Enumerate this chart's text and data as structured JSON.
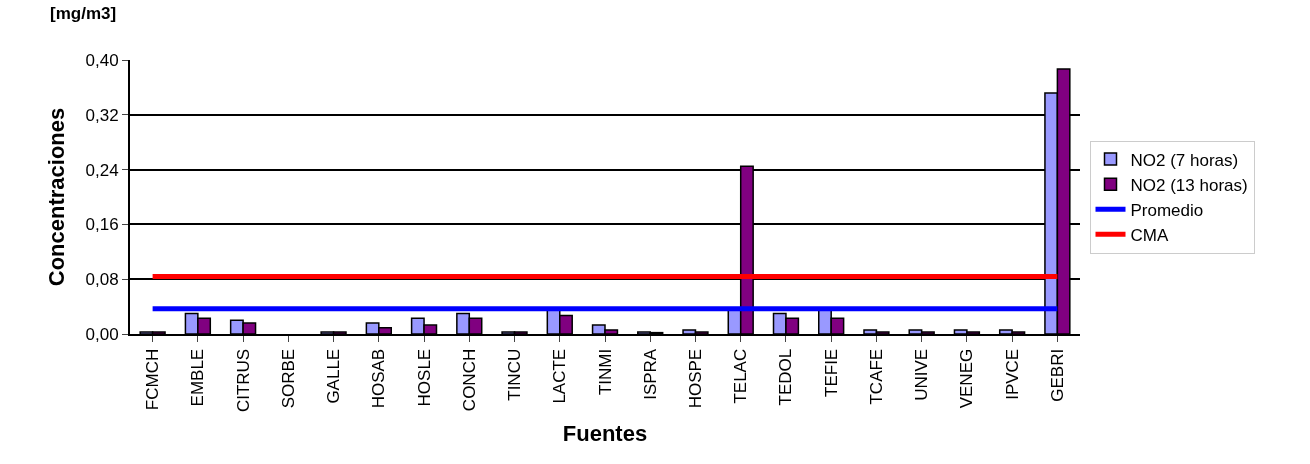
{
  "chart_data": {
    "type": "bar",
    "xlabel": "Fuentes",
    "ylabel": "Concentraciones",
    "annotations": [
      "[mg/m3]"
    ],
    "categories": [
      "FCMCH",
      "EMBLE",
      "CITRUS",
      "SORBE",
      "GALLE",
      "HOSAB",
      "HOSLE",
      "CONCH",
      "TINCU",
      "LACTE",
      "TINMI",
      "ISPRA",
      "HOSPE",
      "TELAC",
      "TEDOL",
      "TEFIE",
      "TCAFE",
      "UNIVE",
      "VENEG",
      "IPVCE",
      "GEBRI"
    ],
    "series": [
      {
        "name": "NO2 (7 horas)",
        "color": "#9999ff",
        "values": [
          0.003,
          0.03,
          0.02,
          null,
          0.003,
          0.016,
          0.023,
          0.03,
          0.003,
          0.035,
          0.013,
          0.003,
          0.006,
          0.037,
          0.03,
          0.036,
          0.006,
          0.006,
          0.006,
          0.006,
          0.352
        ]
      },
      {
        "name": "NO2 (13 horas)",
        "color": "#800080",
        "values": [
          0.003,
          0.023,
          0.016,
          null,
          0.003,
          0.009,
          0.013,
          0.023,
          0.003,
          0.027,
          0.006,
          0.002,
          0.003,
          0.245,
          0.023,
          0.023,
          0.003,
          0.003,
          0.003,
          0.003,
          0.387
        ]
      },
      {
        "name": "Promedio",
        "type": "line",
        "color": "#0000ff",
        "values": [
          0.037,
          0.037,
          0.037,
          0.037,
          0.037,
          0.037,
          0.037,
          0.037,
          0.037,
          0.037,
          0.037,
          0.037,
          0.037,
          0.037,
          0.037,
          0.037,
          0.037,
          0.037,
          0.037,
          0.037,
          0.037
        ]
      },
      {
        "name": "CMA",
        "type": "line",
        "color": "#ff0000",
        "values": [
          0.084,
          0.084,
          0.084,
          0.084,
          0.084,
          0.084,
          0.084,
          0.084,
          0.084,
          0.084,
          0.084,
          0.084,
          0.084,
          0.084,
          0.084,
          0.084,
          0.084,
          0.084,
          0.084,
          0.084,
          0.084
        ]
      }
    ],
    "ylim": [
      0,
      0.4
    ],
    "yticks": [
      {
        "value": 0,
        "label": "0,00"
      },
      {
        "value": 0.08,
        "label": "0,08"
      },
      {
        "value": 0.16,
        "label": "0,16"
      },
      {
        "value": 0.24,
        "label": "0,24"
      },
      {
        "value": 0.32,
        "label": "0,32"
      },
      {
        "value": 0.4,
        "label": "0,40"
      }
    ],
    "grid": "y",
    "legend": "right",
    "marker": "none",
    "line_style": "solid"
  }
}
